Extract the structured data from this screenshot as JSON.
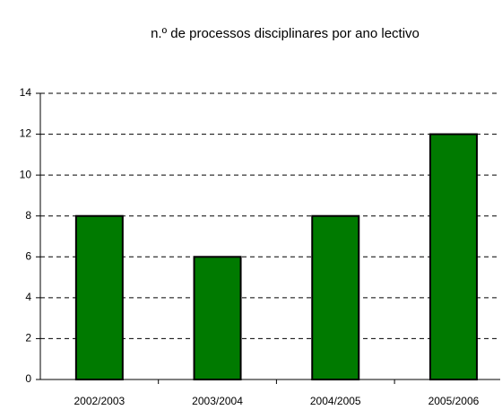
{
  "chart_data": {
    "type": "bar",
    "title": "n.º de processos disciplinares por ano lectivo",
    "categories": [
      "2002/2003",
      "2003/2004",
      "2004/2005",
      "2005/2006"
    ],
    "values": [
      8,
      6,
      8,
      12
    ],
    "color": "#007a00",
    "ylim": [
      0,
      14
    ],
    "yticks": [
      0,
      2,
      4,
      6,
      8,
      10,
      12,
      14
    ],
    "grid": true
  }
}
